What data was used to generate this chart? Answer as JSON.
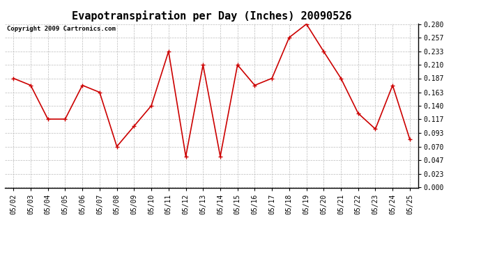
{
  "title": "Evapotranspiration per Day (Inches) 20090526",
  "copyright": "Copyright 2009 Cartronics.com",
  "dates": [
    "05/02",
    "05/03",
    "05/04",
    "05/05",
    "05/06",
    "05/07",
    "05/08",
    "05/09",
    "05/10",
    "05/11",
    "05/12",
    "05/13",
    "05/14",
    "05/15",
    "05/16",
    "05/17",
    "05/18",
    "05/19",
    "05/20",
    "05/21",
    "05/22",
    "05/23",
    "05/24",
    "05/25"
  ],
  "values": [
    0.187,
    0.175,
    0.117,
    0.117,
    0.175,
    0.163,
    0.07,
    0.105,
    0.14,
    0.233,
    0.053,
    0.21,
    0.053,
    0.21,
    0.175,
    0.187,
    0.257,
    0.28,
    0.233,
    0.187,
    0.127,
    0.1,
    0.175,
    0.082
  ],
  "line_color": "#cc0000",
  "marker": "+",
  "marker_size": 4,
  "background_color": "#ffffff",
  "plot_bg_color": "#ffffff",
  "grid_color": "#bbbbbb",
  "ylim": [
    0.0,
    0.28
  ],
  "yticks": [
    0.0,
    0.023,
    0.047,
    0.07,
    0.093,
    0.117,
    0.14,
    0.163,
    0.187,
    0.21,
    0.233,
    0.257,
    0.28
  ],
  "title_fontsize": 11,
  "copyright_fontsize": 6.5,
  "tick_fontsize": 7,
  "line_width": 1.2
}
